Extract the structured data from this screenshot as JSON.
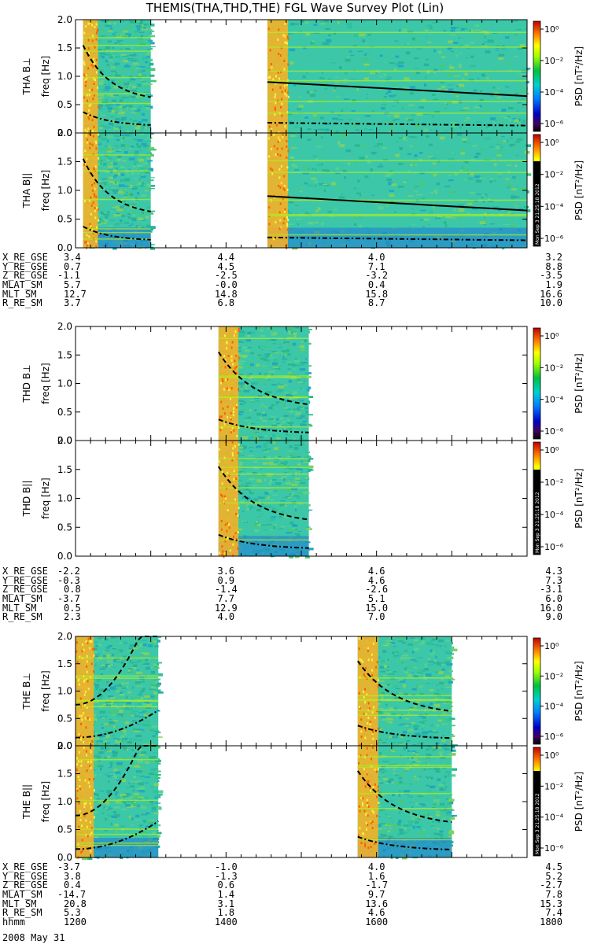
{
  "title": "THEMIS(THA,THD,THE) FGL Wave Survey Plot (Lin)",
  "date_label": "2008 May 31",
  "colorbar_label": "PSD [nT²/Hz]",
  "colorbar_ticks": [
    "10⁰",
    "10⁻²",
    "10⁻⁴",
    "10⁻⁶"
  ],
  "stamp": "Mon Sep 3 21:25:18 2012",
  "chart_data": {
    "type": "heatmap",
    "x_ticks": [
      "1200",
      "1400",
      "1600",
      "1800"
    ],
    "xlim": [
      1200,
      1800
    ],
    "ylim": [
      0,
      2.0
    ],
    "y_ticks": [
      "0.0",
      "0.5",
      "1.0",
      "1.5",
      "2.0"
    ],
    "ylabel_prefix": "freq [Hz]",
    "panels": [
      {
        "probe": "THA",
        "component": "B⊥",
        "label": "THA B⊥",
        "data_intervals": [
          [
            1210,
            1300
          ],
          [
            1455,
            1800
          ]
        ]
      },
      {
        "probe": "THA",
        "component": "B||",
        "label": "THA B||",
        "data_intervals": [
          [
            1210,
            1300
          ],
          [
            1455,
            1800
          ]
        ]
      },
      {
        "probe": "THD",
        "component": "B⊥",
        "label": "THD B⊥",
        "data_intervals": [
          [
            1390,
            1510
          ]
        ]
      },
      {
        "probe": "THD",
        "component": "B||",
        "label": "THD B||",
        "data_intervals": [
          [
            1390,
            1510
          ]
        ]
      },
      {
        "probe": "THE",
        "component": "B⊥",
        "label": "THE B⊥",
        "data_intervals": [
          [
            1200,
            1310
          ],
          [
            1575,
            1700
          ]
        ]
      },
      {
        "probe": "THE",
        "component": "B||",
        "label": "THE B||",
        "data_intervals": [
          [
            1200,
            1310
          ],
          [
            1575,
            1700
          ]
        ]
      }
    ]
  },
  "ephemeris": [
    {
      "probe": "THA",
      "rows": [
        {
          "label": "X_RE_GSE",
          "values": [
            "3.4",
            "4.4",
            "4.0",
            "3.2"
          ]
        },
        {
          "label": "Y_RE_GSE",
          "values": [
            "0.7",
            "4.5",
            "7.1",
            "8.8"
          ]
        },
        {
          "label": "Z_RE_GSE",
          "values": [
            "-1.1",
            "-2.5",
            "-3.2",
            "-3.5"
          ]
        },
        {
          "label": "MLAT_SM",
          "values": [
            "5.7",
            "-0.0",
            "0.4",
            "1.9"
          ]
        },
        {
          "label": "MLT_SM",
          "values": [
            "12.7",
            "14.8",
            "15.8",
            "16.6"
          ]
        },
        {
          "label": "R_RE_SM",
          "values": [
            "3.7",
            "6.8",
            "8.7",
            "10.0"
          ]
        }
      ]
    },
    {
      "probe": "THD",
      "rows": [
        {
          "label": "X_RE_GSE",
          "values": [
            "-2.2",
            "3.6",
            "4.6",
            "4.3"
          ]
        },
        {
          "label": "Y_RE_GSE",
          "values": [
            "-0.3",
            "0.9",
            "4.6",
            "7.3"
          ]
        },
        {
          "label": "Z_RE_GSE",
          "values": [
            "0.8",
            "-1.4",
            "-2.6",
            "-3.1"
          ]
        },
        {
          "label": "MLAT_SM",
          "values": [
            "-3.7",
            "7.7",
            "5.1",
            "6.0"
          ]
        },
        {
          "label": "MLT_SM",
          "values": [
            "0.5",
            "12.9",
            "15.0",
            "16.0"
          ]
        },
        {
          "label": "R_RE_SM",
          "values": [
            "2.3",
            "4.0",
            "7.0",
            "9.0"
          ]
        }
      ]
    },
    {
      "probe": "THE",
      "rows": [
        {
          "label": "X_RE_GSE",
          "values": [
            "-3.7",
            "-1.0",
            "4.0",
            "4.5"
          ]
        },
        {
          "label": "Y_RE_GSE",
          "values": [
            "3.8",
            "-1.3",
            "1.6",
            "5.2"
          ]
        },
        {
          "label": "Z_RE_GSE",
          "values": [
            "0.4",
            "0.6",
            "-1.7",
            "-2.7"
          ]
        },
        {
          "label": "MLAT_SM",
          "values": [
            "-14.7",
            "1.4",
            "9.7",
            "7.8"
          ]
        },
        {
          "label": "MLT_SM",
          "values": [
            "20.8",
            "3.1",
            "13.6",
            "15.3"
          ]
        },
        {
          "label": "R_RE_SM",
          "values": [
            "5.3",
            "1.8",
            "4.6",
            "7.4"
          ]
        },
        {
          "label": "hhmm",
          "values": [
            "1200",
            "1400",
            "1600",
            "1800"
          ]
        }
      ]
    }
  ]
}
